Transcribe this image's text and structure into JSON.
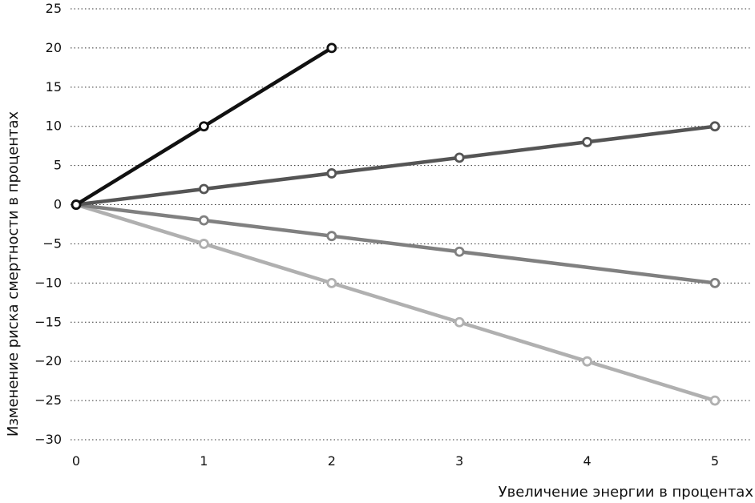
{
  "chart_data": {
    "type": "line",
    "title": "",
    "xlabel": "Увеличение энергии в процентах",
    "ylabel": "Изменение риска смертности в процентах",
    "xlim": [
      0,
      5
    ],
    "ylim": [
      -30,
      25
    ],
    "x_ticks": [
      0,
      1,
      2,
      3,
      4,
      5
    ],
    "y_ticks": [
      25,
      20,
      15,
      10,
      5,
      0,
      -5,
      -10,
      -15,
      -20,
      -25,
      -30
    ],
    "y_tick_labels": [
      "25",
      "20",
      "15",
      "10",
      "5",
      "0",
      "−5",
      "−10",
      "−15",
      "−20",
      "−25",
      "−30"
    ],
    "grid": "horizontal dotted",
    "series": [
      {
        "color": "#111111",
        "x": [
          0,
          1,
          2
        ],
        "y": [
          0,
          10,
          20
        ]
      },
      {
        "color": "#555555",
        "x": [
          0,
          1,
          2,
          3,
          4,
          5
        ],
        "y": [
          0,
          2,
          4,
          6,
          8,
          10
        ]
      },
      {
        "color": "#808080",
        "x": [
          0,
          1,
          2,
          3,
          5
        ],
        "y": [
          0,
          -2,
          -4,
          -6,
          -10
        ]
      },
      {
        "color": "#b0b0b0",
        "x": [
          0,
          1,
          2,
          3,
          4,
          5
        ],
        "y": [
          0,
          -5,
          -10,
          -15,
          -20,
          -25
        ]
      }
    ]
  }
}
